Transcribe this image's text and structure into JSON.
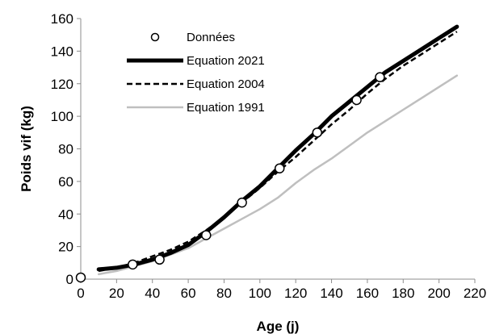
{
  "chart_data": {
    "type": "line",
    "title": "",
    "xlabel": "Age (j)",
    "ylabel": "Poids vif (kg)",
    "xlim": [
      0,
      220
    ],
    "ylim": [
      0,
      160
    ],
    "x_ticks": [
      0,
      20,
      40,
      60,
      80,
      100,
      120,
      140,
      160,
      180,
      200,
      220
    ],
    "y_ticks": [
      0,
      20,
      40,
      60,
      80,
      100,
      120,
      140,
      160
    ],
    "grid": false,
    "legend_position": "top-left",
    "series": [
      {
        "name": "Données",
        "kind": "scatter",
        "color": "#000000",
        "x": [
          0,
          29,
          44,
          70,
          90,
          111,
          132,
          154,
          167
        ],
        "y": [
          1,
          9,
          12,
          27,
          47,
          68,
          90,
          110,
          124
        ]
      },
      {
        "name": "Equation 2021",
        "kind": "line",
        "style": "solid-thick",
        "color": "#000000",
        "x": [
          10,
          20,
          30,
          40,
          50,
          60,
          70,
          80,
          90,
          100,
          110,
          120,
          130,
          140,
          150,
          160,
          170,
          180,
          190,
          200,
          210
        ],
        "y": [
          6,
          7,
          9,
          12,
          16,
          21,
          29,
          38,
          48,
          57,
          68,
          79,
          89,
          100,
          109,
          118,
          127,
          134,
          141,
          148,
          155
        ]
      },
      {
        "name": "Equation 2004",
        "kind": "line",
        "style": "dashed",
        "color": "#000000",
        "x": [
          10,
          20,
          30,
          40,
          50,
          60,
          70,
          80,
          90,
          100,
          110,
          120,
          130,
          140,
          150,
          160,
          170,
          180,
          190,
          200,
          210
        ],
        "y": [
          5,
          7,
          10,
          14,
          18,
          23,
          30,
          38,
          47,
          56,
          66,
          75,
          85,
          95,
          104,
          114,
          123,
          131,
          138,
          145,
          152
        ]
      },
      {
        "name": "Equation 1991",
        "kind": "line",
        "style": "solid",
        "color": "#bfbfbf",
        "x": [
          10,
          20,
          30,
          40,
          50,
          60,
          70,
          80,
          90,
          100,
          110,
          120,
          130,
          140,
          150,
          160,
          170,
          180,
          190,
          200,
          210
        ],
        "y": [
          3,
          5,
          8,
          11,
          15,
          19,
          25,
          31,
          37,
          43,
          50,
          59,
          67,
          74,
          82,
          90,
          97,
          104,
          111,
          118,
          125
        ]
      }
    ]
  }
}
